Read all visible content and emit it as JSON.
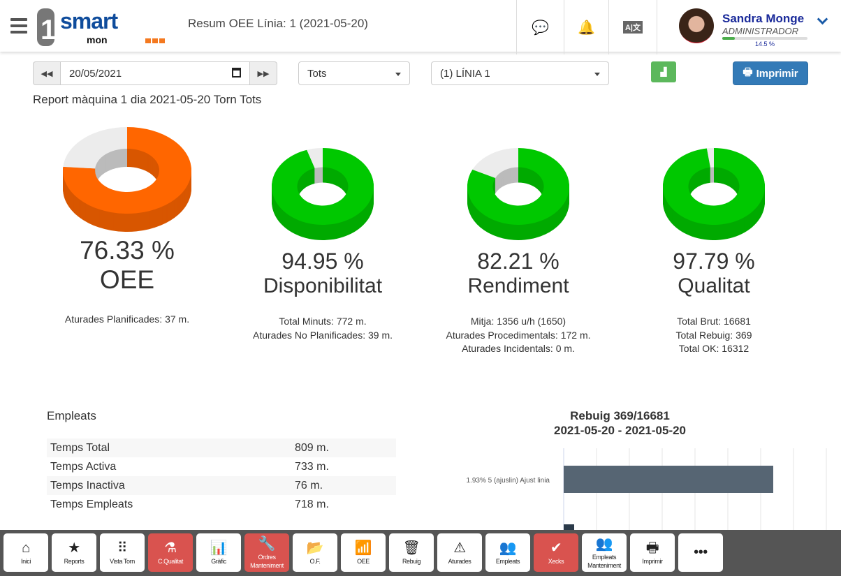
{
  "header": {
    "title": "Resum OEE Línia: 1 (2021-05-20)",
    "logo_text": "1 smart mon",
    "user": {
      "name": "Sandra Monge",
      "role": "ADMINISTRADOR",
      "progress_percent": 14.5,
      "progress_label": "14.5 %"
    }
  },
  "toolbar": {
    "date": "20/05/2021",
    "shift": "Tots",
    "line": "(1) LÍNIA 1",
    "print_label": "Imprimir"
  },
  "report_title": "Report màquina 1 dia 2021-05-20 Torn Tots",
  "colors": {
    "oee": "#ff6600",
    "green": "#00c800",
    "grey": "#ececec"
  },
  "gauges": [
    {
      "value": 76.33,
      "pct": "76.33 %",
      "label": "OEE",
      "color": "#ff6600",
      "details": [
        "Aturades Planificades: 37 m."
      ]
    },
    {
      "value": 94.95,
      "pct": "94.95 %",
      "label": "Disponibilitat",
      "color": "#00c800",
      "details": [
        "Total Minuts: 772 m.",
        "Aturades No Planificades: 39 m."
      ]
    },
    {
      "value": 82.21,
      "pct": "82.21 %",
      "label": "Rendiment",
      "color": "#00c800",
      "details": [
        "Mitja: 1356 u/h (1650)",
        "Aturades Procedimentals: 172 m.",
        "Aturades Incidentals: 0 m."
      ]
    },
    {
      "value": 97.79,
      "pct": "97.79 %",
      "label": "Qualitat",
      "color": "#00c800",
      "details": [
        "Total Brut: 16681",
        "Total Rebuig: 369",
        "Total OK: 16312"
      ]
    }
  ],
  "empleats": {
    "title": "Empleats",
    "rows": [
      [
        "Temps Total",
        "809 m."
      ],
      [
        "Temps Activa",
        "733 m."
      ],
      [
        "Temps Inactiva",
        "76 m."
      ],
      [
        "Temps Empleats",
        "718 m."
      ]
    ]
  },
  "chart_data": {
    "type": "bar",
    "orientation": "horizontal",
    "title": "Rebuig 369/16681",
    "subtitle": "2021-05-20 - 2021-05-20",
    "categories": [
      "1.93% 5 (ajuslin) Ajust linia",
      ""
    ],
    "values": [
      5,
      0.25
    ],
    "xlim": [
      0,
      6.5
    ],
    "grid": true
  },
  "bottom_nav": [
    {
      "label": "Inici",
      "icon": "home-icon",
      "glyph": "⌂"
    },
    {
      "label": "Reports",
      "icon": "star-icon",
      "glyph": "★"
    },
    {
      "label": "Vista Torn",
      "icon": "grid-icon",
      "glyph": "⠿"
    },
    {
      "label": "C.Qualitat",
      "icon": "flask-icon",
      "glyph": "⚗",
      "active": true
    },
    {
      "label": "Gràfic",
      "icon": "bar-chart-icon",
      "glyph": "📊"
    },
    {
      "label": "Ordres Manteniment",
      "icon": "wrench-icon",
      "glyph": "🔧",
      "active": true
    },
    {
      "label": "O.F.",
      "icon": "folder-open-icon",
      "glyph": "📂"
    },
    {
      "label": "OEE",
      "icon": "signal-icon",
      "glyph": "📶"
    },
    {
      "label": "Rebuig",
      "icon": "trash-icon",
      "glyph": "🗑"
    },
    {
      "label": "Aturades",
      "icon": "warning-icon",
      "glyph": "⚠"
    },
    {
      "label": "Empleats",
      "icon": "users-icon",
      "glyph": "👥"
    },
    {
      "label": "Xecks",
      "icon": "check-circle-icon",
      "glyph": "✔",
      "active": true
    },
    {
      "label": "Empleats Manteniment",
      "icon": "users-icon",
      "glyph": "👥"
    },
    {
      "label": "Imprimir",
      "icon": "print-icon",
      "glyph": "🖶"
    },
    {
      "label": "",
      "icon": "more-icon",
      "glyph": "•••"
    }
  ]
}
